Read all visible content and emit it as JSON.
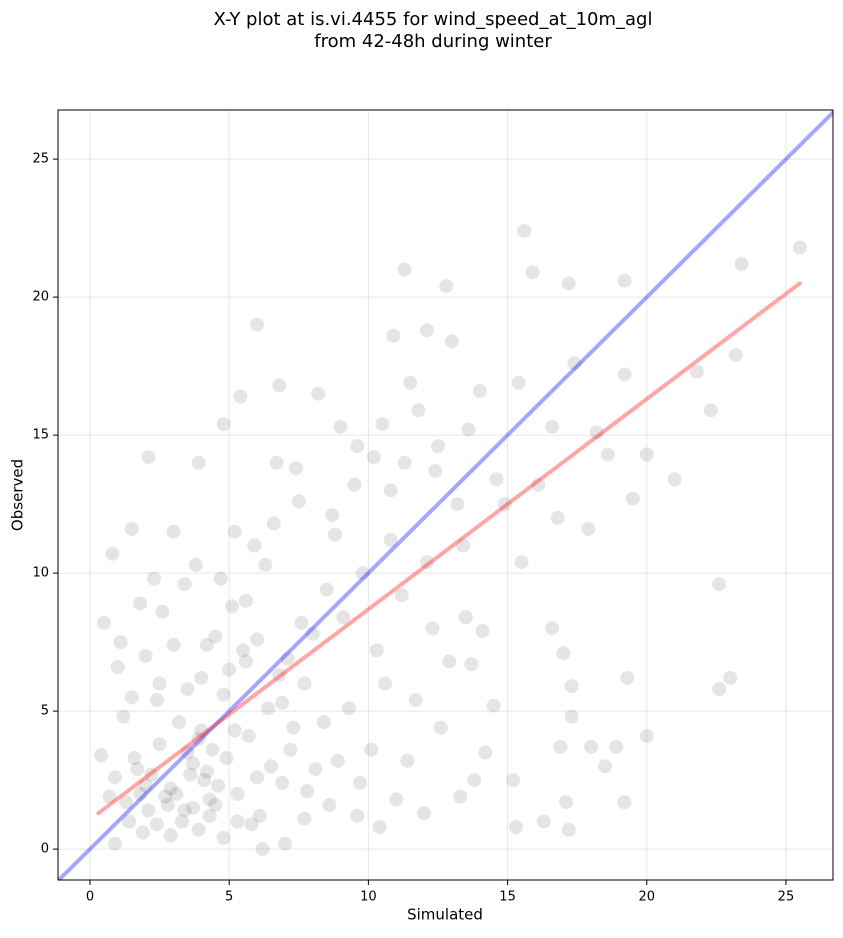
{
  "chart_data": {
    "type": "scatter",
    "title": [
      "X-Y plot at is.vi.4455 for wind_speed_at_10m_agl",
      "from 42-48h during winter"
    ],
    "xlabel": "Simulated",
    "ylabel": "Observed",
    "xlim": [
      -1.15,
      26.69
    ],
    "ylim": [
      -1.12,
      26.78
    ],
    "xticks": [
      0,
      5,
      10,
      15,
      20,
      25
    ],
    "yticks": [
      0,
      5,
      10,
      15,
      20,
      25
    ],
    "grid": true,
    "series": [
      {
        "color": "#000000",
        "alpha": 0.1,
        "x": [
          15.6,
          25.5,
          23.4,
          11.3,
          19.2,
          12.8,
          17.2,
          15.9,
          6.0,
          22.6,
          22.6,
          23.0,
          20.0,
          19.3,
          19.2,
          17.2,
          15.3,
          16.3,
          2.1,
          4.8,
          5.4,
          6.8,
          21.8,
          23.2,
          22.3,
          21.0,
          19.5,
          20.0,
          3.9,
          10.9,
          8.2,
          9.0,
          10.5,
          11.5,
          12.1,
          13.0,
          14.0,
          10.2,
          9.5,
          8.7,
          7.4,
          6.6,
          11.8,
          12.5,
          13.6,
          14.6,
          15.4,
          16.6,
          17.4,
          18.2,
          16.1,
          17.9,
          18.6,
          19.2,
          16.8,
          14.9,
          13.4,
          12.1,
          10.8,
          9.8,
          8.5,
          7.6,
          6.3,
          5.6,
          4.7,
          3.8,
          3.0,
          2.3,
          1.5,
          0.8,
          0.5,
          1.1,
          1.8,
          2.6,
          3.4,
          4.2,
          5.1,
          6.0,
          7.1,
          8.0,
          9.1,
          10.3,
          11.2,
          12.3,
          13.5,
          14.1,
          15.5,
          12.9,
          11.7,
          10.6,
          9.3,
          8.4,
          7.7,
          6.9,
          14.2,
          13.3,
          12.6,
          11.4,
          10.1,
          9.7,
          8.6,
          7.8,
          11.0,
          12.0,
          13.8,
          15.2,
          16.6,
          17.3,
          18.5,
          18.9,
          16.9,
          17.0,
          17.1,
          18.0,
          17.3,
          14.5,
          13.7,
          10.4,
          9.6,
          8.9,
          0.4,
          0.9,
          1.3,
          1.7,
          2.1,
          2.5,
          2.9,
          3.3,
          3.7,
          4.1,
          4.5,
          4.9,
          5.3,
          5.7,
          6.1,
          6.5,
          6.9,
          7.3,
          7.7,
          8.1,
          0.7,
          1.2,
          1.6,
          2.0,
          2.4,
          2.8,
          3.2,
          3.6,
          4.0,
          4.4,
          4.8,
          5.2,
          5.6,
          6.0,
          6.4,
          6.8,
          7.2,
          0.9,
          1.4,
          1.9,
          2.4,
          2.9,
          3.4,
          3.9,
          4.3,
          4.8,
          5.3,
          5.8,
          6.2,
          7.0,
          1.0,
          1.5,
          2.0,
          2.5,
          3.0,
          3.5,
          4.0,
          4.5,
          5.0,
          5.5,
          3.1,
          3.7,
          4.2,
          4.6,
          2.7,
          2.2,
          1.8,
          3.5,
          3.9,
          4.3,
          8.8,
          9.6,
          10.8,
          11.3,
          12.4,
          13.2,
          6.7,
          7.5,
          5.9,
          5.2
        ],
        "y": [
          22.4,
          21.8,
          21.2,
          21.0,
          20.6,
          20.4,
          20.5,
          20.9,
          19.0,
          9.6,
          5.8,
          6.2,
          4.1,
          6.2,
          1.7,
          0.7,
          0.8,
          1.0,
          14.2,
          15.4,
          16.4,
          16.8,
          17.3,
          17.9,
          15.9,
          13.4,
          12.7,
          14.3,
          14.0,
          18.6,
          16.5,
          15.3,
          15.4,
          16.9,
          18.8,
          18.4,
          16.6,
          14.2,
          13.2,
          12.1,
          13.8,
          11.8,
          15.9,
          14.6,
          15.2,
          13.4,
          16.9,
          15.3,
          17.6,
          15.1,
          13.2,
          11.6,
          14.3,
          17.2,
          12.0,
          12.5,
          11.0,
          10.4,
          11.2,
          10.0,
          9.4,
          8.2,
          10.3,
          9.0,
          9.8,
          10.3,
          11.5,
          9.8,
          11.6,
          10.7,
          8.2,
          7.5,
          8.9,
          8.6,
          9.6,
          7.4,
          8.8,
          7.6,
          6.9,
          7.8,
          8.4,
          7.2,
          9.2,
          8.0,
          8.4,
          7.9,
          10.4,
          6.8,
          5.4,
          6.0,
          5.1,
          4.6,
          6.0,
          5.3,
          3.5,
          1.9,
          4.4,
          3.2,
          3.6,
          2.4,
          1.6,
          2.1,
          1.8,
          1.3,
          2.5,
          2.5,
          8.0,
          5.9,
          3.0,
          3.7,
          3.7,
          7.1,
          1.7,
          3.7,
          4.8,
          5.2,
          6.7,
          0.8,
          1.2,
          3.2,
          3.4,
          2.6,
          1.7,
          2.9,
          1.4,
          3.8,
          2.2,
          1.0,
          3.1,
          2.5,
          1.6,
          3.3,
          2.0,
          4.1,
          1.2,
          3.0,
          2.4,
          4.4,
          1.1,
          2.9,
          1.9,
          4.8,
          3.3,
          2.3,
          5.4,
          1.6,
          4.6,
          2.7,
          6.2,
          3.6,
          5.6,
          4.3,
          6.8,
          2.6,
          5.1,
          6.3,
          3.6,
          0.2,
          1.0,
          0.6,
          0.9,
          0.5,
          1.4,
          0.7,
          1.8,
          0.4,
          1.0,
          0.9,
          0.0,
          0.2,
          6.6,
          5.5,
          7.0,
          6.0,
          7.4,
          5.8,
          4.3,
          7.7,
          6.5,
          7.2,
          2.0,
          1.5,
          2.8,
          2.3,
          1.9,
          2.7,
          2.0,
          3.5,
          4.0,
          1.2,
          11.4,
          14.6,
          13.0,
          14.0,
          13.7,
          12.5,
          14.0,
          12.6,
          11.0,
          11.5
        ]
      }
    ],
    "lines": [
      {
        "color": "#0000ff",
        "alpha": 0.35,
        "x": [
          -1.15,
          26.69
        ],
        "y": [
          -1.15,
          26.69
        ]
      },
      {
        "color": "#ff0000",
        "alpha": 0.35,
        "x": [
          0.3,
          25.5
        ],
        "y": [
          1.3,
          20.5
        ]
      }
    ]
  }
}
